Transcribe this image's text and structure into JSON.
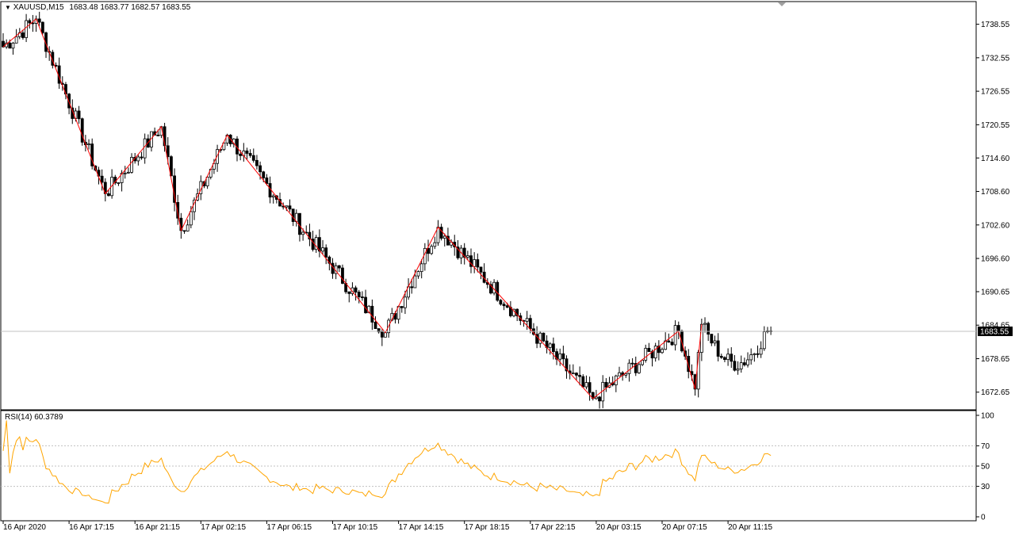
{
  "header": {
    "symbol_timeframe": "XAUUSD,M15",
    "ohlc": "1683.48 1683.77 1682.57 1683.55",
    "menu_icon": "triangle-down-icon"
  },
  "rsi": {
    "label": "RSI(14) 60.3789"
  },
  "colors": {
    "background": "#ffffff",
    "candle": "#000000",
    "zigzag": "#ff0000",
    "rsi_line": "#ffa500",
    "price_line": "#c0c0c0",
    "level_line": "#c0c0c0",
    "price_tag_bg": "#000000",
    "price_tag_text": "#ffffff"
  },
  "chart_data": [
    {
      "type": "candlestick",
      "title": "XAUUSD,M15",
      "current_price": 1683.55,
      "current_price_label": "1683.55",
      "ylim": [
        1670.2,
        1741.9
      ],
      "y_ticks": [
        "1738.55",
        "1732.55",
        "1726.55",
        "1720.55",
        "1714.60",
        "1708.60",
        "1702.60",
        "1696.60",
        "1690.65",
        "1684.65",
        "1678.65",
        "1672.65"
      ],
      "y_tick_values": [
        1738.55,
        1732.55,
        1726.55,
        1720.55,
        1714.6,
        1708.6,
        1702.6,
        1696.6,
        1690.65,
        1684.65,
        1678.65,
        1672.65
      ],
      "x_labels": [
        "16 Apr 2020",
        "16 Apr 17:15",
        "16 Apr 21:15",
        "17 Apr 02:15",
        "17 Apr 06:15",
        "17 Apr 10:15",
        "17 Apr 14:15",
        "17 Apr 18:15",
        "17 Apr 22:15",
        "20 Apr 03:15",
        "20 Apr 07:15",
        "20 Apr 11:15"
      ],
      "x_label_bars": [
        0,
        20,
        40,
        60,
        80,
        100,
        120,
        140,
        160,
        180,
        200,
        220
      ],
      "bars_total": 234,
      "zigzag": [
        {
          "bar": 0,
          "price": 1734.5
        },
        {
          "bar": 10,
          "price": 1739.5
        },
        {
          "bar": 31,
          "price": 1708.2
        },
        {
          "bar": 48,
          "price": 1720.2
        },
        {
          "bar": 54,
          "price": 1701.6
        },
        {
          "bar": 68,
          "price": 1718.7
        },
        {
          "bar": 116,
          "price": 1683.3
        },
        {
          "bar": 132,
          "price": 1702.2
        },
        {
          "bar": 179,
          "price": 1671.5
        },
        {
          "bar": 205,
          "price": 1683.6
        },
        {
          "bar": 210,
          "price": 1673.2
        },
        {
          "bar": 212,
          "price": 1684.8
        }
      ],
      "last_bar": {
        "open": 1683.48,
        "high": 1683.77,
        "low": 1682.57,
        "close": 1683.55
      }
    },
    {
      "type": "line",
      "title": "RSI(14) 60.3789",
      "ylim": [
        0,
        100
      ],
      "y_ticks": [
        "100",
        "70",
        "50",
        "30",
        "0"
      ],
      "y_tick_values": [
        100,
        70,
        50,
        30,
        0
      ],
      "levels": [
        70,
        50,
        30
      ],
      "last_value": 60.3789
    }
  ]
}
